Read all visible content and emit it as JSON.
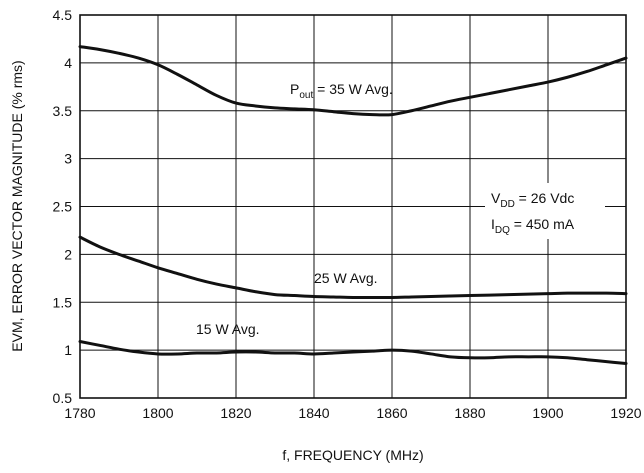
{
  "chart_data": {
    "type": "line",
    "xlabel": "f, FREQUENCY (MHz)",
    "ylabel": "EVM, ERROR VECTOR MAGNITUDE (% rms)",
    "xlim": [
      1780,
      1920
    ],
    "ylim": [
      0.5,
      4.5
    ],
    "x_ticks": [
      "1780",
      "1800",
      "1820",
      "1840",
      "1860",
      "1880",
      "1900",
      "1920"
    ],
    "y_ticks": [
      "0.5",
      "1",
      "1.5",
      "2",
      "2.5",
      "3",
      "3.5",
      "4",
      "4.5"
    ],
    "grid": true,
    "series": [
      {
        "name": "Pout = 35 W Avg.",
        "label": {
          "main": "P",
          "sub": "out",
          "rest": " = 35 W Avg."
        },
        "x": [
          1780,
          1785,
          1790,
          1795,
          1800,
          1805,
          1810,
          1815,
          1820,
          1825,
          1830,
          1835,
          1840,
          1845,
          1850,
          1855,
          1860,
          1865,
          1870,
          1875,
          1880,
          1885,
          1890,
          1895,
          1900,
          1905,
          1910,
          1915,
          1920
        ],
        "y": [
          4.17,
          4.14,
          4.1,
          4.05,
          3.98,
          3.88,
          3.77,
          3.66,
          3.58,
          3.55,
          3.53,
          3.52,
          3.51,
          3.49,
          3.47,
          3.46,
          3.46,
          3.5,
          3.55,
          3.6,
          3.64,
          3.68,
          3.72,
          3.76,
          3.8,
          3.85,
          3.91,
          3.98,
          4.05
        ]
      },
      {
        "name": "25 W Avg.",
        "label": {
          "main": "25 W Avg.",
          "sub": "",
          "rest": ""
        },
        "x": [
          1780,
          1785,
          1790,
          1795,
          1800,
          1805,
          1810,
          1815,
          1820,
          1825,
          1830,
          1835,
          1840,
          1845,
          1850,
          1855,
          1860,
          1865,
          1870,
          1875,
          1880,
          1885,
          1890,
          1895,
          1900,
          1905,
          1910,
          1915,
          1920
        ],
        "y": [
          2.18,
          2.08,
          2.0,
          1.93,
          1.86,
          1.8,
          1.74,
          1.69,
          1.65,
          1.61,
          1.58,
          1.57,
          1.56,
          1.555,
          1.55,
          1.55,
          1.55,
          1.555,
          1.56,
          1.565,
          1.57,
          1.575,
          1.58,
          1.585,
          1.59,
          1.595,
          1.595,
          1.595,
          1.59
        ]
      },
      {
        "name": "15 W Avg.",
        "label": {
          "main": "15 W Avg.",
          "sub": "",
          "rest": ""
        },
        "x": [
          1780,
          1785,
          1790,
          1795,
          1800,
          1805,
          1810,
          1815,
          1820,
          1825,
          1830,
          1835,
          1840,
          1845,
          1850,
          1855,
          1860,
          1865,
          1870,
          1875,
          1880,
          1885,
          1890,
          1895,
          1900,
          1905,
          1910,
          1915,
          1920
        ],
        "y": [
          1.09,
          1.05,
          1.01,
          0.98,
          0.96,
          0.96,
          0.97,
          0.97,
          0.98,
          0.98,
          0.97,
          0.97,
          0.96,
          0.97,
          0.98,
          0.99,
          1.0,
          0.99,
          0.96,
          0.93,
          0.92,
          0.92,
          0.93,
          0.93,
          0.93,
          0.92,
          0.9,
          0.88,
          0.86
        ]
      }
    ],
    "annotations": {
      "vdd": {
        "main": "V",
        "sub": "DD",
        "rest": " = 26 Vdc"
      },
      "idq": {
        "main": "I",
        "sub": "DQ",
        "rest": " = 450 mA"
      }
    }
  }
}
